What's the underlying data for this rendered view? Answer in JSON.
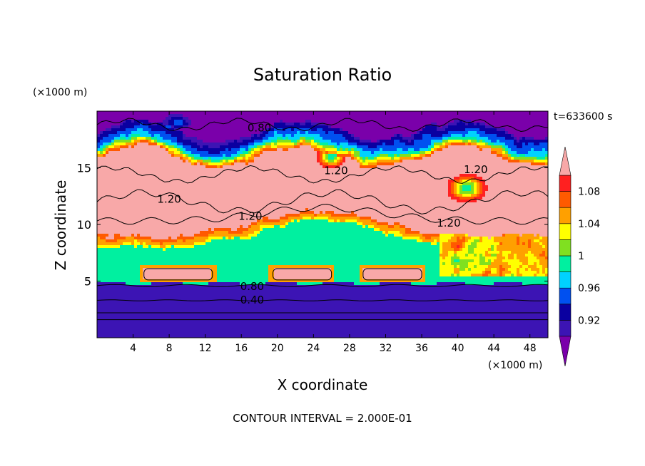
{
  "chart_data": {
    "type": "heatmap",
    "title": "Saturation Ratio",
    "xlabel": "X coordinate",
    "ylabel": "Z coordinate",
    "x_unit": "(×1000 m)",
    "y_unit": "(×1000 m)",
    "time_label": "t=633600 s",
    "footer": "CONTOUR INTERVAL = 2.000E-01",
    "xlim": [
      0,
      50
    ],
    "ylim": [
      0,
      20
    ],
    "x_ticks": [
      4,
      8,
      12,
      16,
      20,
      24,
      28,
      32,
      36,
      40,
      44,
      48
    ],
    "x_tick_labels": [
      "4",
      "8",
      "12",
      "16",
      "20",
      "24",
      "28",
      "32",
      "36",
      "40",
      "44",
      "48"
    ],
    "y_ticks": [
      5,
      10,
      15
    ],
    "y_tick_labels": [
      "5",
      "10",
      "15"
    ],
    "contour_labels": [
      {
        "text": "0.80",
        "x": 18.0,
        "y": 18.6
      },
      {
        "text": "1.20",
        "x": 26.5,
        "y": 14.8
      },
      {
        "text": "1.20",
        "x": 42.0,
        "y": 14.9
      },
      {
        "text": "1.20",
        "x": 8.0,
        "y": 12.3
      },
      {
        "text": "1.20",
        "x": 17.0,
        "y": 10.8
      },
      {
        "text": "1.20",
        "x": 39.0,
        "y": 10.2
      },
      {
        "text": "0.80",
        "x": 17.2,
        "y": 4.6
      },
      {
        "text": "0.40",
        "x": 17.2,
        "y": 3.4
      }
    ],
    "colorbar": {
      "boundaries": [
        0.9,
        0.92,
        0.94,
        0.96,
        0.98,
        1.0,
        1.02,
        1.04,
        1.06,
        1.08,
        1.1
      ],
      "tick_labels": [
        "0.92",
        "0.96",
        "1",
        "1.04",
        "1.08"
      ],
      "colors": [
        "#7a00aa",
        "#3c14b4",
        "#0a00a0",
        "#0050f0",
        "#00d2ff",
        "#00f0a0",
        "#80e020",
        "#ffff00",
        "#ffa000",
        "#ff5a00",
        "#ff2020",
        "#f8a8a8"
      ],
      "extend": "both"
    },
    "regions": {
      "low_layer": {
        "value": 0.9,
        "z_top": 4.8
      },
      "mid_layer": {
        "value": 0.99,
        "z_top": 9.0
      },
      "upper_layer": {
        "value": 1.12,
        "z_top": 17.0
      },
      "top_layer": {
        "value": 0.9,
        "z_top": 20.0
      },
      "supersaturated_patches": [
        {
          "x_start": 5.2,
          "x_end": 12.8,
          "z": 5.6
        },
        {
          "x_start": 19.5,
          "x_end": 26.0,
          "z": 5.6
        },
        {
          "x_start": 29.5,
          "x_end": 36.0,
          "z": 5.6
        }
      ]
    }
  }
}
